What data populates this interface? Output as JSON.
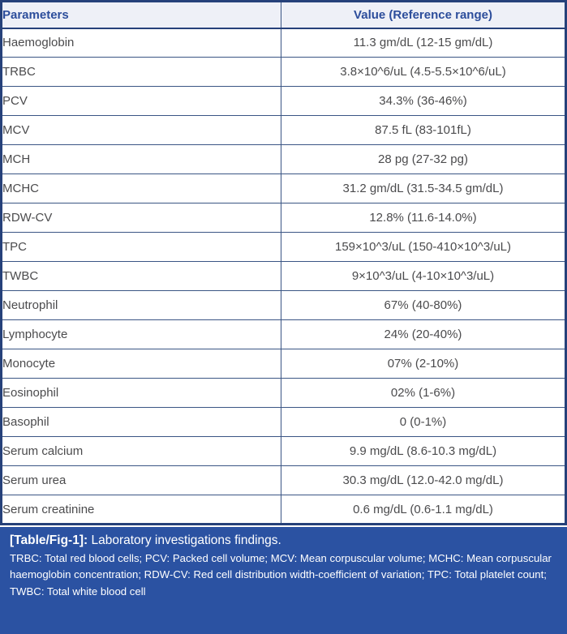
{
  "table": {
    "header": {
      "parameters": "Parameters",
      "value": "Value (Reference range)"
    },
    "rows": [
      {
        "parameter": "Haemoglobin",
        "value": "11.3 gm/dL (12-15 gm/dL)"
      },
      {
        "parameter": "TRBC",
        "value": "3.8×10^6/uL (4.5-5.5×10^6/uL)"
      },
      {
        "parameter": "PCV",
        "value": "34.3% (36-46%)"
      },
      {
        "parameter": "MCV",
        "value": "87.5 fL (83-101fL)"
      },
      {
        "parameter": "MCH",
        "value": "28 pg (27-32 pg)"
      },
      {
        "parameter": "MCHC",
        "value": "31.2 gm/dL (31.5-34.5 gm/dL)"
      },
      {
        "parameter": "RDW-CV",
        "value": "12.8% (11.6-14.0%)"
      },
      {
        "parameter": "TPC",
        "value": "159×10^3/uL (150-410×10^3/uL)"
      },
      {
        "parameter": "TWBC",
        "value": "9×10^3/uL (4-10×10^3/uL)"
      },
      {
        "parameter": "Neutrophil",
        "value": "67% (40-80%)"
      },
      {
        "parameter": "Lymphocyte",
        "value": "24% (20-40%)"
      },
      {
        "parameter": "Monocyte",
        "value": "07% (2-10%)"
      },
      {
        "parameter": "Eosinophil",
        "value": "02% (1-6%)"
      },
      {
        "parameter": "Basophil",
        "value": "0 (0-1%)"
      },
      {
        "parameter": "Serum calcium",
        "value": "9.9 mg/dL (8.6-10.3 mg/dL)"
      },
      {
        "parameter": "Serum urea",
        "value": "30.3 mg/dL (12.0-42.0 mg/dL)"
      },
      {
        "parameter": "Serum creatinine",
        "value": "0.6 mg/dL (0.6-1.1 mg/dL)"
      }
    ]
  },
  "caption": {
    "label": "[Table/Fig-1]:",
    "text": "Laboratory investigations findings."
  },
  "footnote": "TRBC: Total red blood cells; PCV: Packed cell volume; MCV: Mean corpuscular volume; MCHC: Mean corpuscular haemoglobin concentration; RDW-CV: Red cell distribution width-coefficient of variation; TPC: Total platelet count; TWBC: Total white blood cell",
  "colors": {
    "border": "#26417a",
    "line": "#3a5584",
    "header_bg": "#eef0f7",
    "header_text": "#2c4d9b",
    "body_text": "#4b4b4d",
    "band_bg": "#2b52a2",
    "band_text": "#ffffff"
  },
  "chart_data": {
    "type": "table",
    "title": "[Table/Fig-1]: Laboratory investigations findings.",
    "columns": [
      "Parameters",
      "Value (Reference range)"
    ],
    "rows": [
      [
        "Haemoglobin",
        "11.3 gm/dL (12-15 gm/dL)"
      ],
      [
        "TRBC",
        "3.8×10^6/uL (4.5-5.5×10^6/uL)"
      ],
      [
        "PCV",
        "34.3% (36-46%)"
      ],
      [
        "MCV",
        "87.5 fL (83-101fL)"
      ],
      [
        "MCH",
        "28 pg (27-32 pg)"
      ],
      [
        "MCHC",
        "31.2 gm/dL (31.5-34.5 gm/dL)"
      ],
      [
        "RDW-CV",
        "12.8% (11.6-14.0%)"
      ],
      [
        "TPC",
        "159×10^3/uL (150-410×10^3/uL)"
      ],
      [
        "TWBC",
        "9×10^3/uL (4-10×10^3/uL)"
      ],
      [
        "Neutrophil",
        "67% (40-80%)"
      ],
      [
        "Lymphocyte",
        "24% (20-40%)"
      ],
      [
        "Monocyte",
        "07% (2-10%)"
      ],
      [
        "Eosinophil",
        "02% (1-6%)"
      ],
      [
        "Basophil",
        "0 (0-1%)"
      ],
      [
        "Serum calcium",
        "9.9 mg/dL (8.6-10.3 mg/dL)"
      ],
      [
        "Serum urea",
        "30.3 mg/dL (12.0-42.0 mg/dL)"
      ],
      [
        "Serum creatinine",
        "0.6 mg/dL (0.6-1.1 mg/dL)"
      ]
    ]
  }
}
